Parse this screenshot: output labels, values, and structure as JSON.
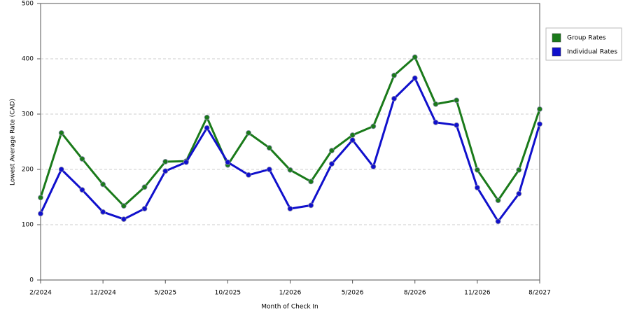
{
  "chart_data": {
    "type": "line",
    "x_label": "Month of Check In",
    "y_label": "Lowest Average Rate (CAD)",
    "categories": [
      "2/2024",
      null,
      null,
      "12/2024",
      null,
      null,
      "5/2025",
      null,
      null,
      "10/2025",
      null,
      null,
      "1/2026",
      null,
      null,
      "5/2026",
      null,
      null,
      "8/2026",
      null,
      null,
      "11/2026",
      null,
      null,
      "8/2027"
    ],
    "series": [
      {
        "name": "Group Rates",
        "color": "#1a7a1a",
        "values": [
          149,
          266,
          219,
          173,
          134,
          168,
          214,
          215,
          294,
          208,
          266,
          239,
          199,
          178,
          234,
          262,
          278,
          370,
          403,
          318,
          325,
          199,
          144,
          199,
          309
        ]
      },
      {
        "name": "Individual Rates",
        "color": "#1010cc",
        "values": [
          120,
          200,
          163,
          123,
          110,
          129,
          197,
          213,
          275,
          213,
          190,
          200,
          129,
          135,
          210,
          253,
          205,
          328,
          365,
          285,
          280,
          167,
          106,
          156,
          282
        ]
      }
    ],
    "ylim": [
      0,
      500
    ],
    "yticks": [
      0,
      100,
      200,
      300,
      400,
      500
    ],
    "grid": true,
    "legend": "right"
  }
}
